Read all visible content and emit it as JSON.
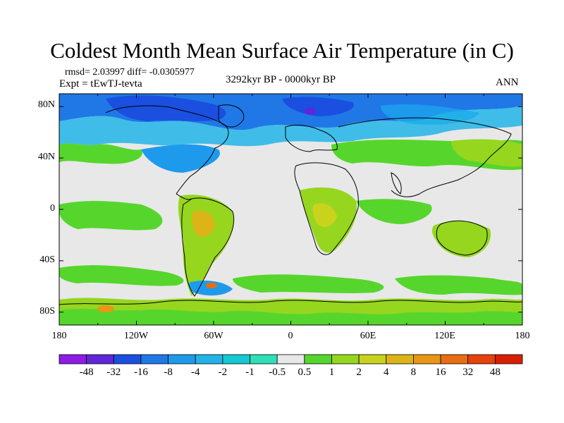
{
  "title": "Coldest Month Mean Surface Air Temperature (in C)",
  "stats": "rmsd= 2.03997 diff= -0.0305977",
  "experiment": "Expt = tEwTJ-tevta",
  "period": "3292kyr BP - 0000kyr BP",
  "season": "ANN",
  "lat_labels": [
    "80N",
    "40N",
    "0",
    "40S",
    "80S"
  ],
  "lon_labels": [
    "180",
    "120W",
    "60W",
    "0",
    "60E",
    "120E",
    "180"
  ],
  "colorbar": {
    "colors": [
      "#8c1ce6",
      "#5f27d9",
      "#1a4fe0",
      "#1f78e6",
      "#1e9aed",
      "#22b4e8",
      "#14c9d2",
      "#2fe0b6",
      "#e8e8e8",
      "#56d62c",
      "#96d61f",
      "#c9d21c",
      "#ddb418",
      "#e89715",
      "#e86e12",
      "#e5420d",
      "#d81f04"
    ],
    "labels": [
      "-48",
      "-32",
      "-16",
      "-8",
      "-4",
      "-2",
      "-1",
      "-0.5",
      "0.5",
      "1",
      "2",
      "4",
      "8",
      "16",
      "32",
      "48"
    ]
  }
}
